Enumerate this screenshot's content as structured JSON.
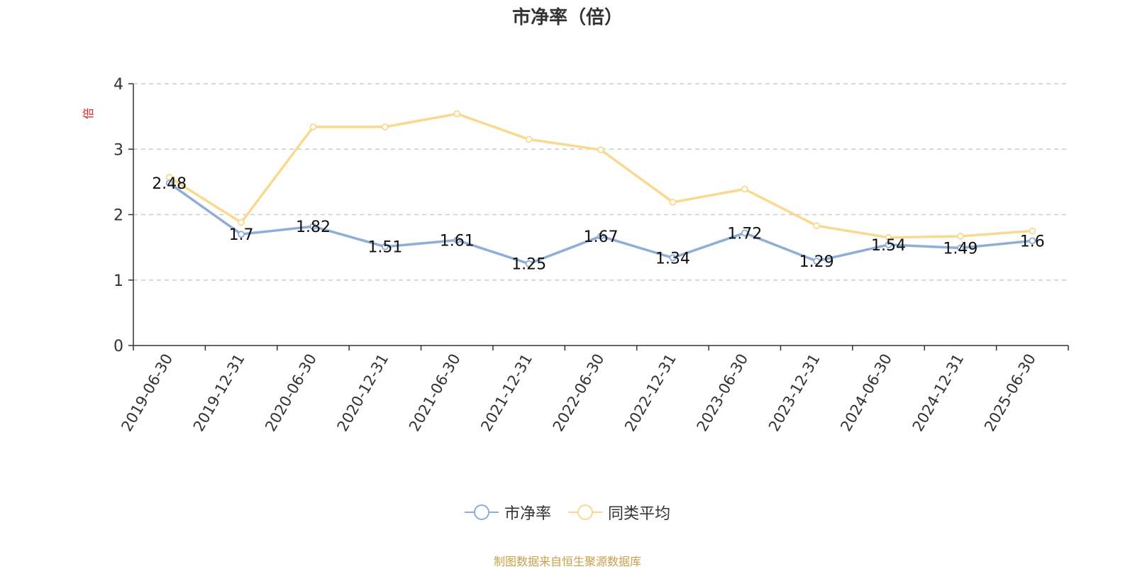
{
  "chart_data": {
    "type": "line",
    "title": "市净率（倍）",
    "ylabel": "倍",
    "xlabel": "",
    "ylim": [
      0,
      4
    ],
    "yticks": [
      0,
      1,
      2,
      3,
      4
    ],
    "grid": true,
    "legend_position": "bottom",
    "categories": [
      "2019-06-30",
      "2019-12-31",
      "2020-06-30",
      "2020-12-31",
      "2021-06-30",
      "2021-12-31",
      "2022-06-30",
      "2022-12-31",
      "2023-06-30",
      "2023-12-31",
      "2024-06-30",
      "2024-12-31",
      "2025-06-30"
    ],
    "series": [
      {
        "name": "市净率",
        "color": "#8eaed8",
        "values": [
          2.48,
          1.7,
          1.82,
          1.51,
          1.61,
          1.25,
          1.67,
          1.34,
          1.72,
          1.29,
          1.54,
          1.49,
          1.6
        ],
        "data_labels": [
          "2.48",
          "1.7",
          "1.82",
          "1.51",
          "1.61",
          "1.25",
          "1.67",
          "1.34",
          "1.72",
          "1.29",
          "1.54",
          "1.49",
          "1.6"
        ]
      },
      {
        "name": "同类平均",
        "color": "#fad98f",
        "values": [
          2.57,
          1.88,
          3.34,
          3.34,
          3.54,
          3.15,
          2.99,
          2.19,
          2.39,
          1.83,
          1.65,
          1.67,
          1.75
        ]
      }
    ]
  },
  "footer": {
    "source": "制图数据来自恒生聚源数据库"
  }
}
